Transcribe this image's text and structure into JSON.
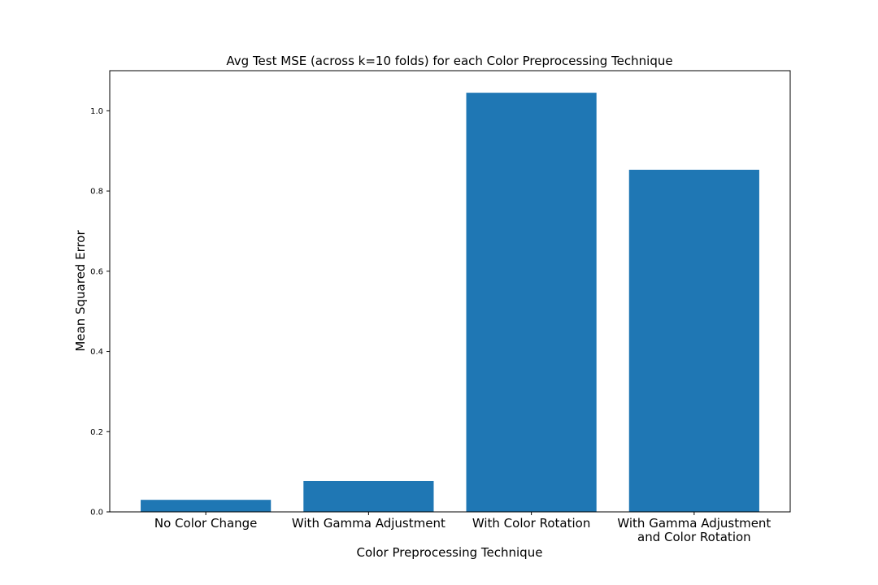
{
  "chart_data": {
    "type": "bar",
    "title": "Avg Test MSE (across k=10 folds) for each Color Preprocessing Technique",
    "xlabel": "Color Preprocessing Technique",
    "ylabel": "Mean Squared Error",
    "categories": [
      "No Color Change",
      "With Gamma Adjustment",
      "With Color Rotation",
      "With Gamma Adjustment\nand Color Rotation"
    ],
    "values": [
      0.03,
      0.077,
      1.045,
      0.853
    ],
    "ylim": [
      0,
      1.1
    ],
    "yticks": [
      0.0,
      0.2,
      0.4,
      0.6,
      0.8,
      1.0
    ],
    "ytick_labels": [
      "0.0",
      "0.2",
      "0.4",
      "0.6",
      "0.8",
      "1.0"
    ],
    "bar_color": "#1f77b4",
    "grid": false,
    "legend": "none"
  }
}
